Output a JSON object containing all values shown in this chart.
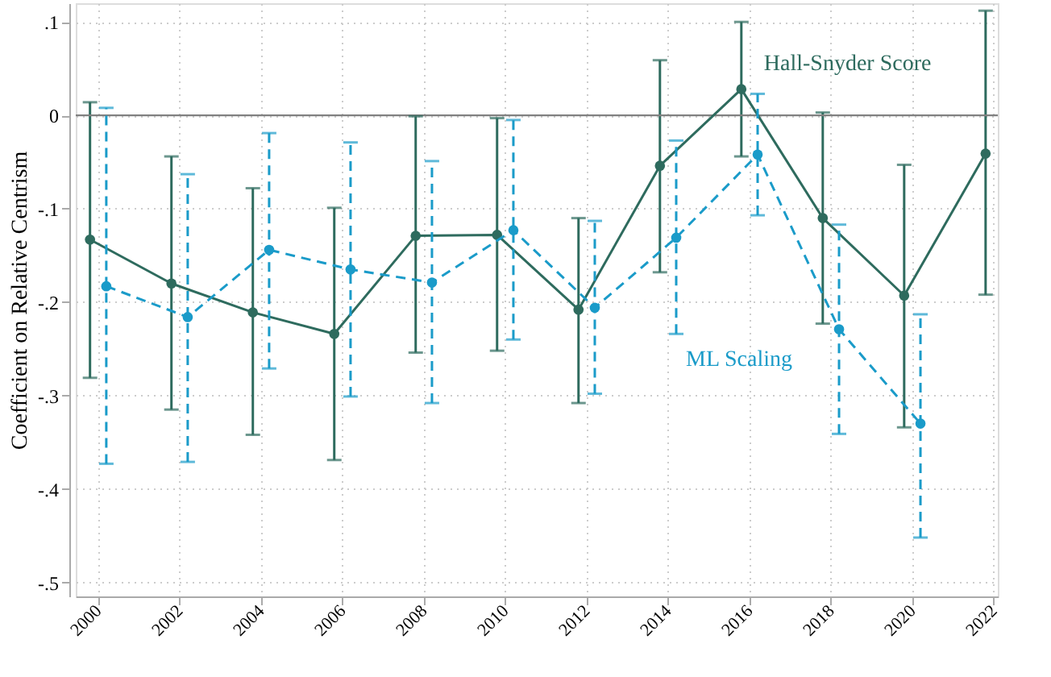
{
  "chart_data": {
    "type": "line",
    "ylabel": "Coefficient on Relative Centrism",
    "xlim": [
      1999.45,
      2022.1
    ],
    "xticks": [
      2000,
      2002,
      2004,
      2006,
      2008,
      2010,
      2012,
      2014,
      2016,
      2018,
      2020,
      2022
    ],
    "ylim": [
      -0.515,
      0.12
    ],
    "yticks": [
      {
        "value": 0.1,
        "label": ".1"
      },
      {
        "value": 0,
        "label": "0"
      },
      {
        "value": -0.1,
        "label": "-.1"
      },
      {
        "value": -0.2,
        "label": "-.2"
      },
      {
        "value": -0.3,
        "label": "-.3"
      },
      {
        "value": -0.4,
        "label": "-.4"
      },
      {
        "value": -0.5,
        "label": "-.5"
      }
    ],
    "grid": true,
    "marker": "circle",
    "legend": false,
    "series": [
      {
        "name": "Hall-Snyder Score",
        "color": "#2e6b5e",
        "line_style": "solid",
        "x": [
          1999.8,
          2001.8,
          2003.8,
          2005.8,
          2007.8,
          2009.8,
          2011.8,
          2013.8,
          2015.8,
          2017.8,
          2019.8,
          2021.8
        ],
        "values": [
          -0.133,
          -0.18,
          -0.211,
          -0.234,
          -0.129,
          -0.128,
          -0.208,
          -0.054,
          0.028,
          -0.11,
          -0.193,
          -0.041
        ],
        "errors": [
          [
            -0.281,
            0.014
          ],
          [
            -0.315,
            -0.044
          ],
          [
            -0.342,
            -0.078
          ],
          [
            -0.369,
            -0.099
          ],
          [
            -0.254,
            -0.001
          ],
          [
            -0.252,
            -0.003
          ],
          [
            -0.308,
            -0.11
          ],
          [
            -0.168,
            0.059
          ],
          [
            -0.044,
            0.1
          ],
          [
            -0.223,
            0.003
          ],
          [
            -0.334,
            -0.053
          ],
          [
            -0.192,
            0.112
          ]
        ]
      },
      {
        "name": "ML Scaling",
        "color": "#1a9bc9",
        "line_style": "dashed",
        "x": [
          2000.2,
          2002.2,
          2004.2,
          2006.2,
          2008.2,
          2010.2,
          2012.2,
          2014.2,
          2016.2,
          2018.2,
          2020.2
        ],
        "values": [
          -0.183,
          -0.216,
          -0.144,
          -0.165,
          -0.179,
          -0.123,
          -0.206,
          -0.131,
          -0.042,
          -0.229,
          -0.33
        ],
        "errors": [
          [
            -0.373,
            0.008
          ],
          [
            -0.371,
            -0.063
          ],
          [
            -0.271,
            -0.019
          ],
          [
            -0.301,
            -0.029
          ],
          [
            -0.308,
            -0.049
          ],
          [
            -0.24,
            -0.005
          ],
          [
            -0.298,
            -0.113
          ],
          [
            -0.234,
            -0.027
          ],
          [
            -0.107,
            0.023
          ],
          [
            -0.341,
            -0.117
          ],
          [
            -0.452,
            -0.213
          ]
        ]
      }
    ],
    "ref_lines": [
      {
        "axis": "y",
        "value": 0,
        "color": "#808080",
        "line_style": "solid"
      }
    ]
  }
}
